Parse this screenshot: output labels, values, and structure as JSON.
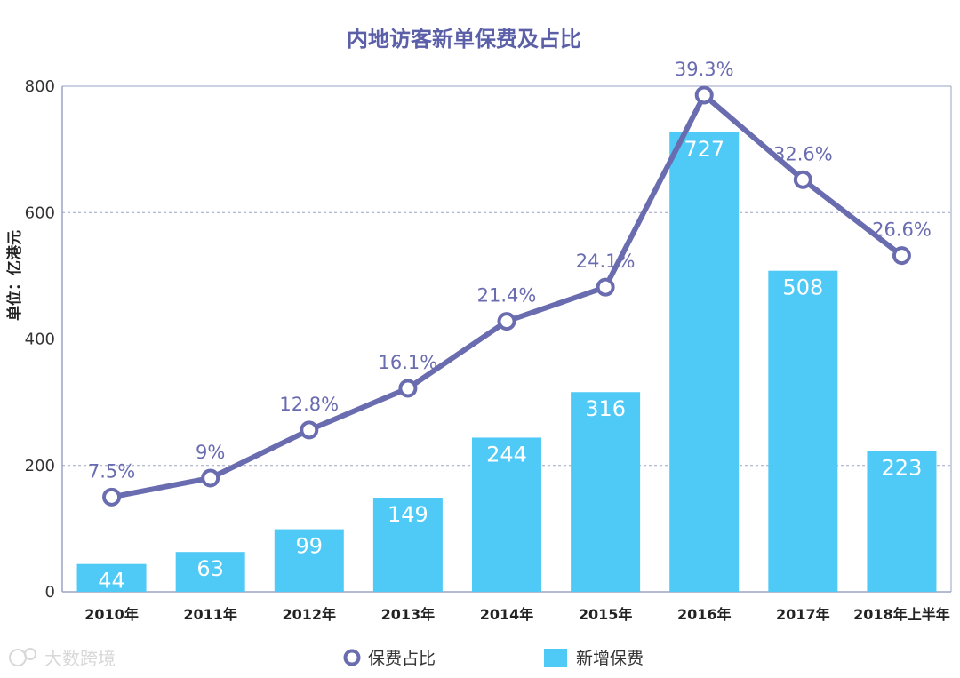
{
  "watermark": {
    "text": "大数跨境"
  },
  "chart_data": {
    "type": "bar",
    "title": "内地访客新单保费及占比",
    "ylabel": "单位：亿港元",
    "xlabel": "",
    "ylim": [
      0,
      800
    ],
    "yticks": [
      0,
      200,
      400,
      600,
      800
    ],
    "grid": true,
    "legend_position": "bottom",
    "categories": [
      "2010年",
      "2011年",
      "2012年",
      "2013年",
      "2014年",
      "2015年",
      "2016年",
      "2017年",
      "2018年上半年"
    ],
    "series": [
      {
        "name": "新增保费",
        "kind": "bar",
        "color": "#4fc9f5",
        "values": [
          44,
          63,
          99,
          149,
          244,
          316,
          727,
          508,
          223
        ],
        "labels": [
          "44",
          "63",
          "99",
          "149",
          "244",
          "316",
          "727",
          "508",
          "223"
        ]
      },
      {
        "name": "保费占比",
        "kind": "line",
        "color": "#6a6cb0",
        "unit": "%",
        "values": [
          7.5,
          9,
          12.8,
          16.1,
          21.4,
          24.1,
          39.3,
          32.6,
          26.6
        ],
        "labels": [
          "7.5%",
          "9%",
          "12.8%",
          "16.1%",
          "21.4%",
          "24.1%",
          "39.3%",
          "32.6%",
          "26.6%"
        ],
        "axis_scale_note": "plotted so that 39.3% ≈ 786 on the 0–800 axis"
      }
    ]
  }
}
